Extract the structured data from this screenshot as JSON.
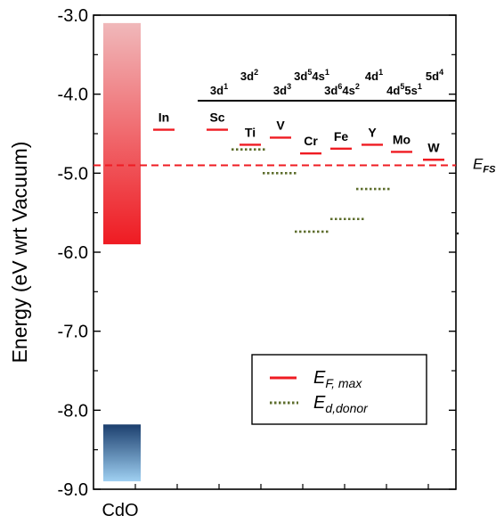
{
  "chart_data": {
    "type": "bar",
    "ylabel": "Energy (eV wrt Vacuum)",
    "ylim": [
      -9.0,
      -3.0
    ],
    "yticks": [
      "-3.0",
      "-4.0",
      "-5.0",
      "-6.0",
      "-7.0",
      "-8.0",
      "-9.0"
    ],
    "y_tick_values": [
      -3.0,
      -4.0,
      -5.0,
      -6.0,
      -7.0,
      -8.0,
      -9.0
    ],
    "xlabel": "CdO",
    "bands": [
      {
        "name": "conduction band",
        "y_top": -3.1,
        "y_bottom": -5.9,
        "color_top": "#f0b8ba",
        "color_bottom": "#ef1b22"
      },
      {
        "name": "valence band",
        "y_top": -8.18,
        "y_bottom": -8.9,
        "color_top": "#1c3f6e",
        "color_bottom": "#9fd0f2"
      }
    ],
    "fermi_stabilization": {
      "value": -4.9,
      "label_main": "E",
      "label_sub": "FS",
      "color": "#ef1b22"
    },
    "elements": [
      {
        "label": "In",
        "ef_max": -4.45,
        "ed_donor": null
      },
      {
        "label": "Sc",
        "ef_max": -4.45,
        "ed_donor": null
      },
      {
        "label": "Ti",
        "ef_max": -4.64,
        "ed_donor": -4.7
      },
      {
        "label": "V",
        "ef_max": -4.55,
        "ed_donor": -5.0
      },
      {
        "label": "Cr",
        "ef_max": -4.75,
        "ed_donor": -5.74
      },
      {
        "label": "Fe",
        "ef_max": -4.69,
        "ed_donor": -5.58
      },
      {
        "label": "Y",
        "ef_max": -4.64,
        "ed_donor": -5.2
      },
      {
        "label": "Mo",
        "ef_max": -4.73,
        "ed_donor": null
      },
      {
        "label": "W",
        "ef_max": -4.83,
        "ed_donor": null
      }
    ],
    "config_labels": [
      {
        "base": "3d",
        "sup": "1",
        "tail_base": "",
        "tail_sup": ""
      },
      {
        "base": "3d",
        "sup": "2",
        "tail_base": "",
        "tail_sup": ""
      },
      {
        "base": "3d",
        "sup": "3",
        "tail_base": "",
        "tail_sup": ""
      },
      {
        "base": "3d",
        "sup": "5",
        "tail_base": "4s",
        "tail_sup": "1"
      },
      {
        "base": "3d",
        "sup": "6",
        "tail_base": "4s",
        "tail_sup": "2"
      },
      {
        "base": "4d",
        "sup": "1",
        "tail_base": "",
        "tail_sup": ""
      },
      {
        "base": "4d",
        "sup": "5",
        "tail_base": "5s",
        "tail_sup": "1"
      },
      {
        "base": "5d",
        "sup": "4",
        "tail_base": "",
        "tail_sup": ""
      }
    ],
    "legend": {
      "position": "bottom-right",
      "items": [
        {
          "main": "E",
          "sub": "F, max",
          "style": "solid",
          "color": "#ef1b22"
        },
        {
          "main": "E",
          "sub": "d,donor",
          "style": "dotted",
          "color": "#5d6d2c"
        }
      ]
    },
    "colors": {
      "ef_max": "#ef1b22",
      "ed_donor": "#5d6d2c",
      "axis": "#000000"
    }
  }
}
